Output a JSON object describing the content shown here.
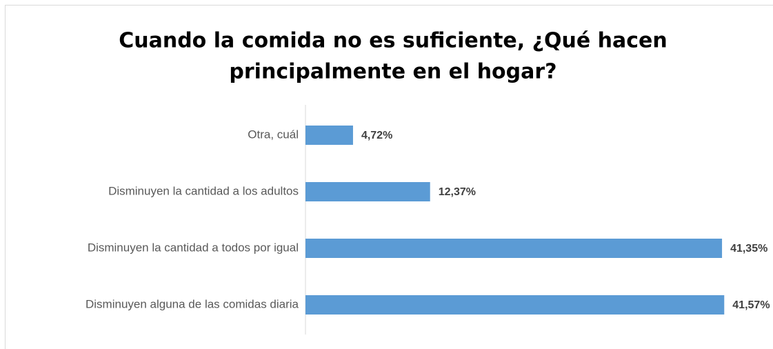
{
  "chart_data": {
    "type": "bar",
    "orientation": "horizontal",
    "title": [
      "Cuando la comida no es suficiente, ¿Qué hacen",
      "principalmente en el hogar?"
    ],
    "categories": [
      "Otra, cuál",
      "Disminuyen la cantidad a los adultos",
      "Disminuyen la cantidad a todos por igual",
      "Disminuyen alguna de las comidas diaria"
    ],
    "values": [
      4.72,
      12.37,
      41.35,
      41.57
    ],
    "value_labels": [
      "4,72%",
      "12,37%",
      "41,35%",
      "41,57%"
    ],
    "color": "#5b9bd5",
    "xlim": [
      0,
      46
    ]
  }
}
